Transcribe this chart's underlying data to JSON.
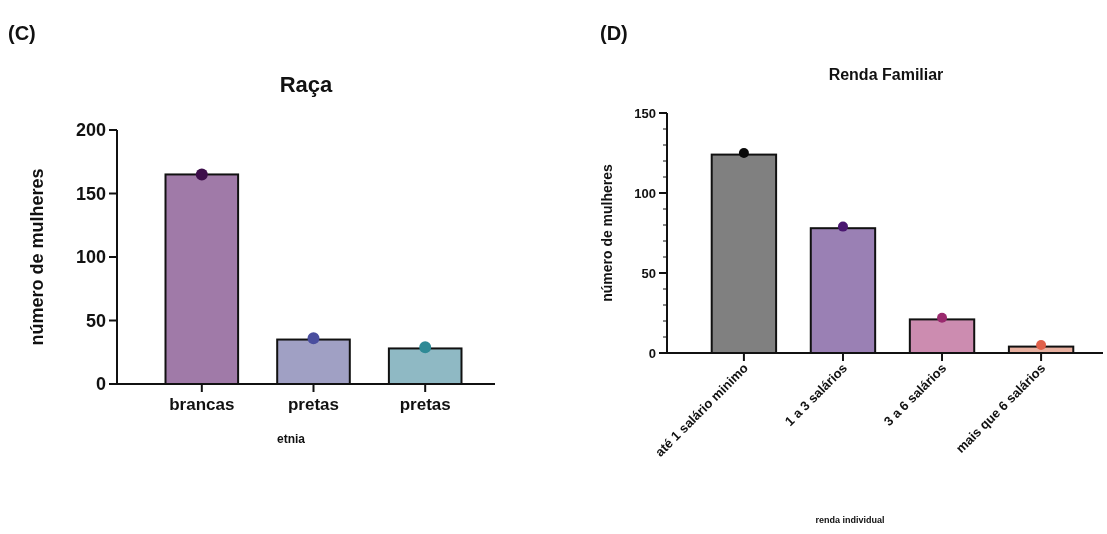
{
  "chart_data": [
    {
      "type": "bar",
      "title": "Raça",
      "ylabel": "número de mulheres",
      "xlabel": "etnia",
      "annotations": [
        "(C)"
      ],
      "categories": [
        "brancas",
        "pretas",
        "pretas"
      ],
      "series": [
        {
          "values": [
            165,
            35,
            28
          ],
          "colors": [
            "#a07aa8",
            "#a0a0c4",
            "#8fb9c4"
          ]
        },
        {
          "type": "scatter",
          "values": [
            165,
            36,
            29
          ],
          "colors": [
            "#3d0e4a",
            "#4a4e9e",
            "#2f8a96"
          ]
        }
      ],
      "ylim": [
        0,
        200
      ],
      "yticks": [
        0,
        50,
        100,
        150,
        200
      ],
      "grid": false,
      "marker": "circle"
    },
    {
      "type": "bar",
      "title": "Renda Familiar",
      "ylabel": "número de mulheres",
      "xlabel": "renda individual",
      "annotations": [
        "(D)"
      ],
      "categories": [
        "até 1 salário minimo",
        "1 a 3 salários",
        "3 a 6 salários",
        "mais que 6 salários"
      ],
      "series": [
        {
          "values": [
            124,
            78,
            21,
            4
          ],
          "colors": [
            "#808080",
            "#9a80b4",
            "#cc8cb0",
            "#e8b0a0"
          ]
        },
        {
          "type": "scatter",
          "values": [
            125,
            79,
            22,
            5
          ],
          "colors": [
            "#0a0a0a",
            "#4a1770",
            "#9a2a6e",
            "#e0604a"
          ]
        }
      ],
      "ylim": [
        0,
        150
      ],
      "yticks": [
        0,
        {
          "value": 10,
          "label": null
        },
        {
          "value": 20,
          "label": null
        },
        {
          "value": 30,
          "label": null
        },
        {
          "value": 40,
          "label": null
        },
        50,
        {
          "value": 60,
          "label": null
        },
        {
          "value": 70,
          "label": null
        },
        {
          "value": 80,
          "label": null
        },
        {
          "value": 90,
          "label": null
        },
        100,
        {
          "value": 110,
          "label": null
        },
        {
          "value": 120,
          "label": null
        },
        {
          "value": 130,
          "label": null
        },
        {
          "value": 140,
          "label": null
        },
        150
      ],
      "grid": false,
      "marker": "circle"
    }
  ]
}
